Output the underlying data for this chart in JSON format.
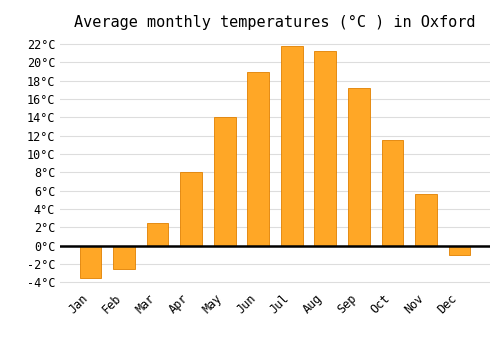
{
  "title": "Average monthly temperatures (°C ) in Oxford",
  "months": [
    "Jan",
    "Feb",
    "Mar",
    "Apr",
    "May",
    "Jun",
    "Jul",
    "Aug",
    "Sep",
    "Oct",
    "Nov",
    "Dec"
  ],
  "values": [
    -3.5,
    -2.5,
    2.5,
    8.0,
    14.0,
    19.0,
    21.8,
    21.2,
    17.2,
    11.5,
    5.7,
    -1.0
  ],
  "bar_color": "#FFA726",
  "bar_edge_color": "#E08000",
  "background_color": "#FFFFFF",
  "plot_bg_color": "#FFFFFF",
  "grid_color": "#DDDDDD",
  "ylim": [
    -4.5,
    23
  ],
  "yticks": [
    -4,
    -2,
    0,
    2,
    4,
    6,
    8,
    10,
    12,
    14,
    16,
    18,
    20,
    22
  ],
  "title_fontsize": 11,
  "tick_fontsize": 8.5,
  "font_family": "monospace",
  "bar_width": 0.65
}
